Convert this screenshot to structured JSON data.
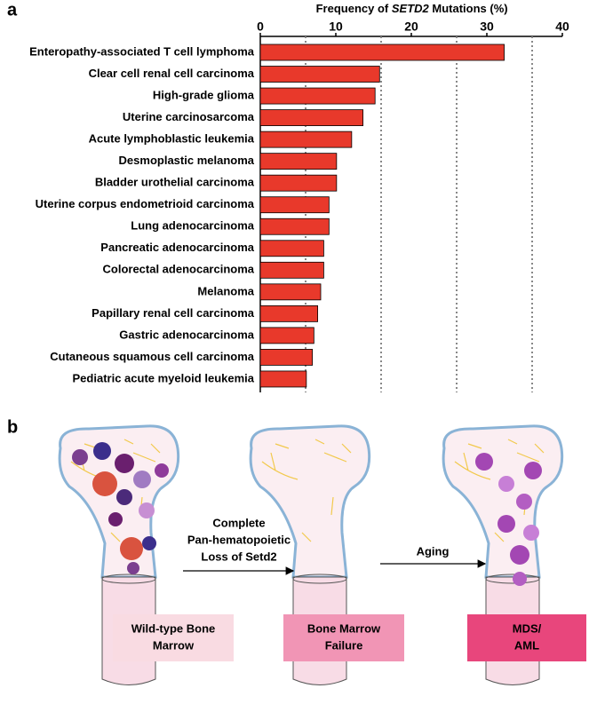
{
  "chart_data": {
    "type": "barh",
    "panel_label": "a",
    "xlabel_parts": [
      "Frequency of ",
      "SETD2",
      " Mutations (%)"
    ],
    "categories": [
      "Enteropathy-associated T cell lymphoma",
      "Clear cell renal cell carcinoma",
      "High-grade glioma",
      "Uterine carcinosarcoma",
      "Acute lymphoblastic leukemia",
      "Desmoplastic melanoma",
      "Bladder urothelial carcinoma",
      "Uterine corpus endometrioid carcinoma",
      "Lung adenocarcinoma",
      "Pancreatic adenocarcinoma",
      "Colorectal adenocarcinoma",
      "Melanoma",
      "Papillary renal cell carcinoma",
      "Gastric adenocarcinoma",
      "Cutaneous squamous cell carcinoma",
      "Pediatric acute myeloid leukemia"
    ],
    "values": [
      32.3,
      15.8,
      15.2,
      13.6,
      12.1,
      10.1,
      10.1,
      9.1,
      9.1,
      8.4,
      8.4,
      8.0,
      7.6,
      7.1,
      6.9,
      6.1
    ],
    "color": "#e8392b",
    "xlim": [
      0,
      40
    ],
    "xticks": [
      0,
      10,
      20,
      30,
      40
    ],
    "dotted_lines": [
      6,
      16,
      26,
      36
    ]
  },
  "diagram": {
    "panel_label": "b",
    "arrow_1_label": [
      "Complete",
      "Pan-hematopoietic",
      "Loss of Setd2"
    ],
    "arrow_2_label": "Aging",
    "boxes": [
      [
        "Wild-type Bone",
        "Marrow"
      ],
      [
        "Bone Marrow",
        "Failure"
      ],
      [
        "MDS/",
        "AML"
      ]
    ]
  }
}
